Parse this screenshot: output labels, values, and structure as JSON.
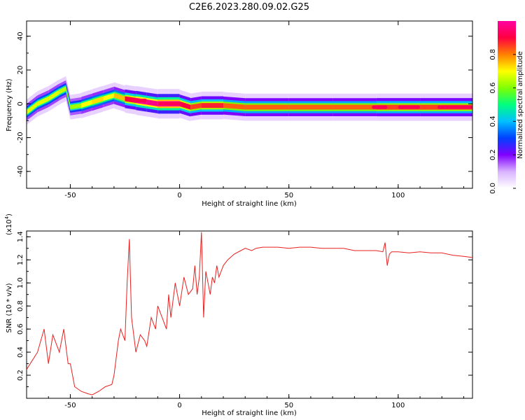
{
  "title": "C2E6.2023.280.09.02.G25",
  "chart_data": [
    {
      "type": "heatmap",
      "xlabel": "Height of straight line (km)",
      "ylabel": "Frequency (Hz)",
      "xlim": [
        -70,
        134
      ],
      "ylim": [
        -50,
        49
      ],
      "xticks": [
        "-50",
        "0",
        "50",
        "100"
      ],
      "xtick_values": [
        -50,
        0,
        50,
        100
      ],
      "yticks": [
        "-40",
        "-20",
        "0",
        "20",
        "40"
      ],
      "ytick_values": [
        -40,
        -20,
        0,
        20,
        40
      ],
      "colorbar": {
        "label": "Normalized spectral amplitude",
        "range": [
          0,
          1
        ],
        "ticks": [
          "0.0",
          "0.2",
          "0.4",
          "0.6",
          "0.8"
        ],
        "tick_values": [
          0.0,
          0.2,
          0.4,
          0.6,
          0.8
        ],
        "colormap": [
          "#ffffff",
          "#d9b3ff",
          "#8000ff",
          "#0040ff",
          "#00c0ff",
          "#00ff80",
          "#80ff00",
          "#ffff00",
          "#ff8000",
          "#ff0040",
          "#ff00a0"
        ]
      },
      "ridge": [
        {
          "x": -70,
          "f": -5,
          "amp": 0.55
        },
        {
          "x": -65,
          "f": 0,
          "amp": 0.6
        },
        {
          "x": -60,
          "f": 3,
          "amp": 0.55
        },
        {
          "x": -55,
          "f": 7,
          "amp": 0.6
        },
        {
          "x": -52,
          "f": 9,
          "amp": 0.5
        },
        {
          "x": -50,
          "f": -2,
          "amp": 0.5
        },
        {
          "x": -45,
          "f": -1,
          "amp": 0.55
        },
        {
          "x": -40,
          "f": 1,
          "amp": 0.65
        },
        {
          "x": -35,
          "f": 3,
          "amp": 0.6
        },
        {
          "x": -30,
          "f": 5,
          "amp": 0.6
        },
        {
          "x": -25,
          "f": 3,
          "amp": 0.7
        },
        {
          "x": -20,
          "f": 2,
          "amp": 0.9
        },
        {
          "x": -15,
          "f": 1,
          "amp": 0.85
        },
        {
          "x": -10,
          "f": 0,
          "amp": 0.9
        },
        {
          "x": -5,
          "f": 0,
          "amp": 0.95
        },
        {
          "x": 0,
          "f": 0,
          "amp": 0.9
        },
        {
          "x": 5,
          "f": -2,
          "amp": 0.7
        },
        {
          "x": 10,
          "f": -1,
          "amp": 0.8
        },
        {
          "x": 20,
          "f": -1,
          "amp": 0.75
        },
        {
          "x": 30,
          "f": -2,
          "amp": 0.7
        },
        {
          "x": 50,
          "f": -2,
          "amp": 0.75
        },
        {
          "x": 70,
          "f": -2,
          "amp": 0.7
        },
        {
          "x": 90,
          "f": -2,
          "amp": 0.75
        },
        {
          "x": 110,
          "f": -2,
          "amp": 0.75
        },
        {
          "x": 134,
          "f": -2,
          "amp": 0.75
        }
      ],
      "hot_segments": [
        {
          "x0": -22,
          "x1": -15,
          "f": 2
        },
        {
          "x0": -10,
          "x1": 1,
          "f": 0
        },
        {
          "x0": 88,
          "x1": 95,
          "f": -2
        },
        {
          "x0": 100,
          "x1": 110,
          "f": -2
        },
        {
          "x0": 118,
          "x1": 134,
          "f": -2
        }
      ]
    },
    {
      "type": "line",
      "xlabel": "Height of straight line (km)",
      "ylabel": "SNR (10 * v/v)",
      "scale_label": "(x10",
      "scale_exponent": "4",
      "scale_close": ")",
      "xlim": [
        -70,
        134
      ],
      "ylim": [
        0,
        1.45
      ],
      "xticks": [
        "-50",
        "0",
        "50",
        "100"
      ],
      "xtick_values": [
        -50,
        0,
        50,
        100
      ],
      "yticks": [
        "0.2",
        "0.4",
        "0.6",
        "0.8",
        "1.0",
        "1.2",
        "1.4"
      ],
      "ytick_values": [
        0.2,
        0.4,
        0.6,
        0.8,
        1.0,
        1.2,
        1.4
      ],
      "color": "#e8201f",
      "series": [
        {
          "x": [
            -70,
            -65,
            -62,
            -60,
            -58,
            -55,
            -53,
            -51,
            -50,
            -48,
            -45,
            -42,
            -40,
            -37,
            -34,
            -31,
            -30,
            -29,
            -28,
            -27,
            -25,
            -24,
            -23,
            -22,
            -20,
            -18,
            -16,
            -15,
            -13,
            -11,
            -10,
            -8,
            -6,
            -5,
            -4,
            -2,
            0,
            2,
            4,
            6,
            7,
            8,
            9,
            10,
            11,
            12,
            13,
            14,
            15,
            16,
            17,
            18,
            20,
            22,
            25,
            28,
            30,
            33,
            35,
            38,
            40,
            45,
            50,
            55,
            60,
            65,
            70,
            75,
            80,
            85,
            90,
            93,
            94,
            95,
            96,
            97,
            100,
            105,
            110,
            115,
            120,
            125,
            130,
            134
          ],
          "y": [
            0.25,
            0.4,
            0.6,
            0.3,
            0.55,
            0.4,
            0.6,
            0.3,
            0.3,
            0.1,
            0.06,
            0.04,
            0.03,
            0.06,
            0.1,
            0.12,
            0.2,
            0.35,
            0.5,
            0.6,
            0.5,
            1.0,
            1.38,
            0.7,
            0.4,
            0.55,
            0.5,
            0.45,
            0.7,
            0.6,
            0.8,
            0.7,
            0.6,
            0.9,
            0.7,
            1.0,
            0.8,
            1.05,
            0.9,
            0.95,
            1.15,
            0.9,
            1.05,
            1.44,
            0.7,
            1.1,
            1.0,
            0.9,
            1.05,
            1.0,
            1.15,
            1.05,
            1.15,
            1.2,
            1.25,
            1.28,
            1.3,
            1.28,
            1.3,
            1.31,
            1.31,
            1.31,
            1.3,
            1.31,
            1.31,
            1.3,
            1.3,
            1.3,
            1.28,
            1.28,
            1.28,
            1.27,
            1.35,
            1.15,
            1.25,
            1.27,
            1.27,
            1.26,
            1.27,
            1.26,
            1.26,
            1.24,
            1.23,
            1.22
          ]
        }
      ]
    }
  ]
}
